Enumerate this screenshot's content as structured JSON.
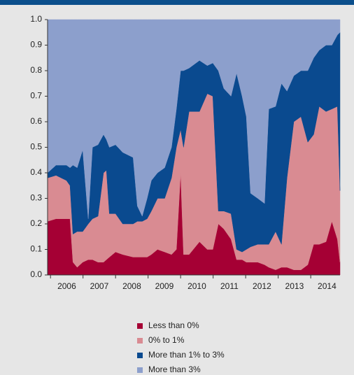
{
  "chart_data": {
    "type": "stacked_area",
    "x": [
      2005.91,
      2006.17,
      2006.49,
      2006.6,
      2006.69,
      2006.82,
      2006.99,
      2007.16,
      2007.29,
      2007.46,
      2007.63,
      2007.72,
      2007.81,
      2008.0,
      2008.22,
      2008.54,
      2008.67,
      2008.82,
      2008.97,
      2009.1,
      2009.29,
      2009.51,
      2009.72,
      2009.87,
      2010.0,
      2010.09,
      2010.26,
      2010.58,
      2010.82,
      2010.99,
      2011.16,
      2011.33,
      2011.55,
      2011.72,
      2011.89,
      2012.02,
      2012.15,
      2012.37,
      2012.58,
      2012.71,
      2012.92,
      2013.1,
      2013.27,
      2013.48,
      2013.7,
      2013.91,
      2014.09,
      2014.26,
      2014.47,
      2014.65,
      2014.82,
      2014.9
    ],
    "series": [
      {
        "name": "Less than 0%",
        "color": "#a50034",
        "values": [
          0.21,
          0.22,
          0.22,
          0.22,
          0.05,
          0.03,
          0.05,
          0.06,
          0.06,
          0.05,
          0.05,
          0.06,
          0.07,
          0.09,
          0.08,
          0.07,
          0.07,
          0.07,
          0.07,
          0.08,
          0.1,
          0.09,
          0.08,
          0.1,
          0.4,
          0.08,
          0.08,
          0.13,
          0.1,
          0.1,
          0.2,
          0.18,
          0.14,
          0.06,
          0.06,
          0.05,
          0.05,
          0.05,
          0.04,
          0.03,
          0.02,
          0.03,
          0.03,
          0.02,
          0.02,
          0.04,
          0.12,
          0.12,
          0.13,
          0.21,
          0.14,
          0.05
        ]
      },
      {
        "name": "0% to 1%",
        "color": "#d98b92",
        "values": [
          0.17,
          0.17,
          0.15,
          0.13,
          0.11,
          0.14,
          0.12,
          0.14,
          0.16,
          0.18,
          0.35,
          0.35,
          0.17,
          0.15,
          0.12,
          0.13,
          0.14,
          0.14,
          0.15,
          0.17,
          0.2,
          0.21,
          0.3,
          0.4,
          0.17,
          0.42,
          0.56,
          0.51,
          0.61,
          0.6,
          0.05,
          0.07,
          0.1,
          0.04,
          0.03,
          0.05,
          0.06,
          0.07,
          0.08,
          0.09,
          0.15,
          0.09,
          0.35,
          0.58,
          0.6,
          0.48,
          0.43,
          0.54,
          0.51,
          0.44,
          0.52,
          0.28
        ]
      },
      {
        "name": "More than 1% to 3%",
        "color": "#0a4a8f",
        "values": [
          0.02,
          0.04,
          0.06,
          0.07,
          0.27,
          0.25,
          0.32,
          0.02,
          0.28,
          0.28,
          0.15,
          0.12,
          0.26,
          0.27,
          0.28,
          0.26,
          0.06,
          0.02,
          0.08,
          0.12,
          0.1,
          0.12,
          0.12,
          0.15,
          0.23,
          0.3,
          0.17,
          0.2,
          0.11,
          0.13,
          0.55,
          0.48,
          0.46,
          0.69,
          0.61,
          0.52,
          0.21,
          0.18,
          0.16,
          0.53,
          0.49,
          0.63,
          0.34,
          0.18,
          0.18,
          0.28,
          0.3,
          0.22,
          0.26,
          0.25,
          0.28,
          0.62
        ]
      },
      {
        "name": "More than 3%",
        "color": "#8c9fcc",
        "values": [
          0.6,
          0.57,
          0.57,
          0.58,
          0.57,
          0.58,
          0.51,
          0.78,
          0.5,
          0.49,
          0.45,
          0.47,
          0.5,
          0.49,
          0.52,
          0.54,
          0.73,
          0.77,
          0.7,
          0.63,
          0.6,
          0.58,
          0.5,
          0.35,
          0.2,
          0.2,
          0.19,
          0.16,
          0.18,
          0.17,
          0.2,
          0.27,
          0.3,
          0.21,
          0.3,
          0.38,
          0.68,
          0.7,
          0.72,
          0.35,
          0.34,
          0.25,
          0.28,
          0.22,
          0.2,
          0.2,
          0.15,
          0.12,
          0.1,
          0.1,
          0.06,
          0.05
        ]
      }
    ],
    "xlim": [
      2005.91,
      2014.9
    ],
    "xticks": [
      {
        "value": 2006.5,
        "label": "2006"
      },
      {
        "value": 2007.5,
        "label": "2007"
      },
      {
        "value": 2008.5,
        "label": "2008"
      },
      {
        "value": 2009.5,
        "label": "2009"
      },
      {
        "value": 2010.5,
        "label": "2010"
      },
      {
        "value": 2011.5,
        "label": "2011"
      },
      {
        "value": 2012.5,
        "label": "2012"
      },
      {
        "value": 2013.5,
        "label": "2013"
      },
      {
        "value": 2014.5,
        "label": "2014"
      }
    ],
    "ylim": [
      0,
      1
    ],
    "yticks": [
      {
        "value": 0,
        "label": "0.0"
      },
      0.1,
      0.2,
      0.3,
      0.4,
      0.5,
      0.6,
      0.7,
      0.8,
      0.9,
      {
        "value": 1,
        "label": "1.0"
      }
    ],
    "legend": "bottom"
  }
}
